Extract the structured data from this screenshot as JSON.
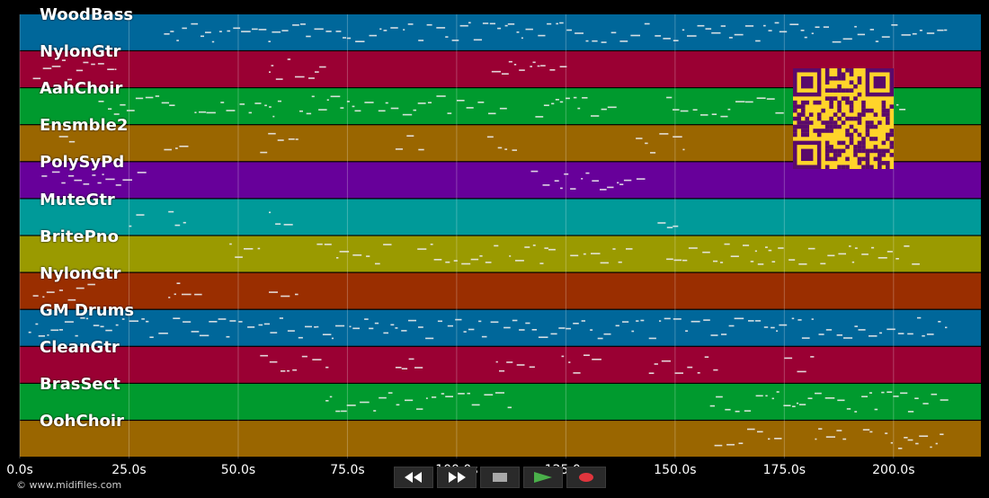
{
  "tracks": [
    {
      "label": "WoodBass",
      "color": "#00679a"
    },
    {
      "label": "NylonGtr",
      "color": "#9a0033"
    },
    {
      "label": "AahChoir",
      "color": "#009a2e"
    },
    {
      "label": "Ensmble2",
      "color": "#9a6600"
    },
    {
      "label": "PolySyPd",
      "color": "#67009a"
    },
    {
      "label": "MuteGtr",
      "color": "#009a99"
    },
    {
      "label": "BritePno",
      "color": "#9a9a00"
    },
    {
      "label": "NylonGtr",
      "color": "#9a2e00"
    },
    {
      "label": "GM Drums",
      "color": "#00679a"
    },
    {
      "label": "CleanGtr",
      "color": "#9a0033"
    },
    {
      "label": "BrasSect",
      "color": "#009a2e"
    },
    {
      "label": "OohChoir",
      "color": "#9a6600"
    }
  ],
  "timeline": {
    "max_seconds": 220,
    "ticks": [
      "0.0s",
      "25.0s",
      "50.0s",
      "75.0s",
      "100.0s",
      "125.0s",
      "150.0s",
      "175.0s",
      "200.0s"
    ]
  },
  "transport": {
    "rewind": "rewind-icon",
    "fast_forward": "fast-forward-icon",
    "stop": "stop-icon",
    "play": "play-icon",
    "record": "record-icon",
    "play_color": "#4ab04a",
    "record_color": "#e0353d"
  },
  "overlay": {
    "qr_fg": "#5a0a6b",
    "qr_bg": "#ffd42a"
  },
  "footer": {
    "copyright": "© www.midifiles.com"
  }
}
